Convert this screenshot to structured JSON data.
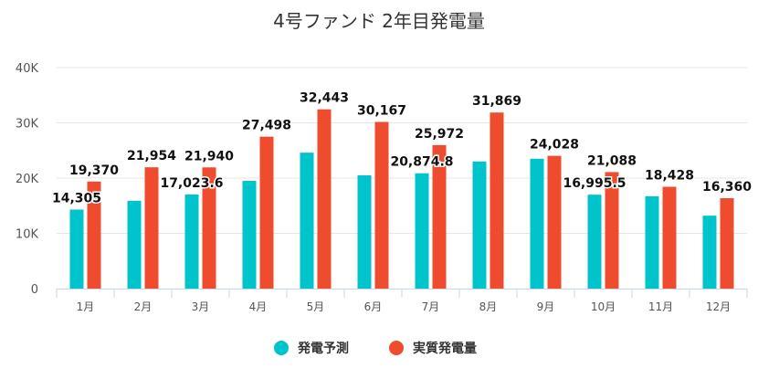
{
  "chart_data": {
    "type": "bar",
    "title": "4号ファンド 2年目発電量",
    "categories": [
      "1月",
      "2月",
      "3月",
      "4月",
      "5月",
      "6月",
      "7月",
      "8月",
      "9月",
      "10月",
      "11月",
      "12月"
    ],
    "ylim": [
      0,
      40000
    ],
    "yticks": [
      "0",
      "10K",
      "20K",
      "30K",
      "40K"
    ],
    "grid": true,
    "legend_position": "bottom-center",
    "series": [
      {
        "name": "発電予測",
        "color": "#00c4cc",
        "values": [
          14305,
          15900,
          17023.6,
          19500,
          24600,
          20500,
          20874.8,
          23000,
          23500,
          16995.5,
          16700,
          13200
        ],
        "labels": [
          "14,305",
          null,
          "17,023.6",
          null,
          null,
          null,
          "20,874.8",
          null,
          null,
          "16,995.5",
          null,
          null
        ]
      },
      {
        "name": "実質発電量",
        "color": "#ee4b2f",
        "values": [
          19370,
          21954,
          21940,
          27498,
          32443,
          30167,
          25972,
          31869,
          24028,
          21088,
          18428,
          16360
        ],
        "labels": [
          "19,370",
          "21,954",
          "21,940",
          "27,498",
          "32,443",
          "30,167",
          "25,972",
          "31,869",
          "24,028",
          "21,088",
          "18,428",
          "16,360"
        ]
      }
    ]
  }
}
